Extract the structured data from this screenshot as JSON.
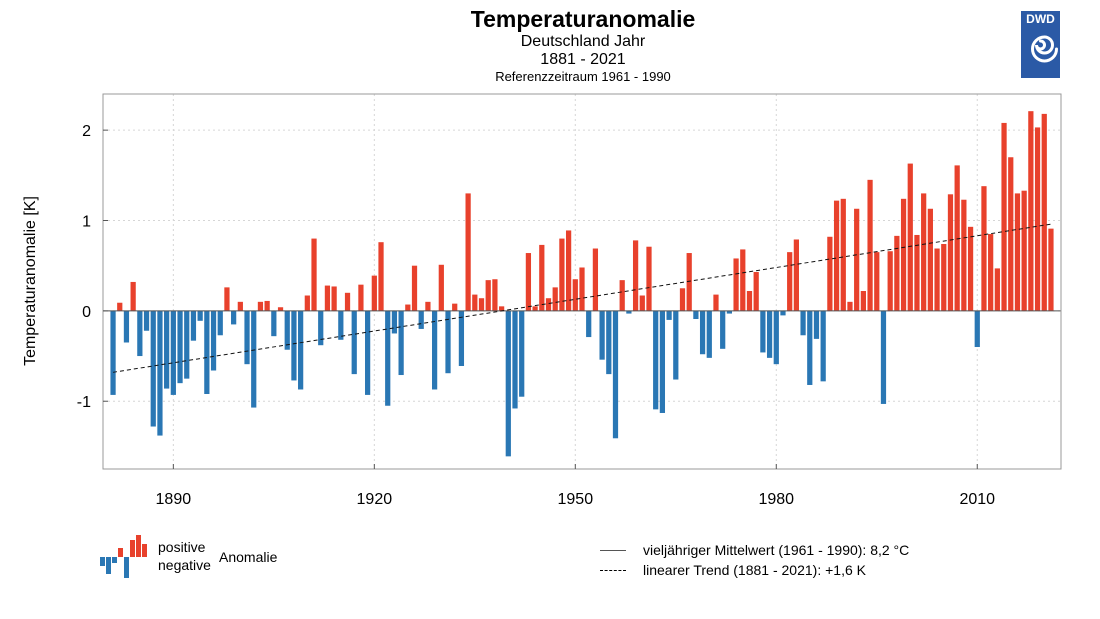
{
  "header": {
    "title": "Temperaturanomalie",
    "subtitle": "Deutschland Jahr",
    "period": "1881 - 2021",
    "reference": "Referenzzeitraum 1961 - 1990",
    "logo_text": "DWD",
    "logo_color": "#2b5aa6"
  },
  "legend": {
    "positive": "positive",
    "negative": "negative",
    "anomaly": "Anomalie",
    "mean_line": "vieljähriger Mittelwert (1961 - 1990): 8,2 °C",
    "trend_line": "linearer Trend (1881 - 2021): +1,6 K"
  },
  "chart_data": {
    "type": "bar",
    "title": "Temperaturanomalie",
    "ylabel": "Temperaturanomalie [K]",
    "xlabel": "",
    "xlim": [
      1879.5,
      2022.5
    ],
    "ylim": [
      -1.75,
      2.4
    ],
    "x_ticks": [
      1890,
      1920,
      1950,
      1980,
      2010
    ],
    "y_ticks": [
      -1,
      0,
      1,
      2
    ],
    "grid": true,
    "positive_color": "#e8412c",
    "negative_color": "#2a77b4",
    "start_year": 1881,
    "values": [
      -0.93,
      0.09,
      -0.35,
      0.32,
      -0.5,
      -0.22,
      -1.28,
      -1.38,
      -0.86,
      -0.93,
      -0.8,
      -0.75,
      -0.33,
      -0.11,
      -0.92,
      -0.66,
      -0.27,
      0.26,
      -0.15,
      0.1,
      -0.59,
      -1.07,
      0.1,
      0.11,
      -0.28,
      0.04,
      -0.43,
      -0.77,
      -0.87,
      0.17,
      0.8,
      -0.38,
      0.28,
      0.27,
      -0.32,
      0.2,
      -0.7,
      0.29,
      -0.93,
      0.39,
      0.76,
      -1.05,
      -0.25,
      -0.71,
      0.07,
      0.5,
      -0.2,
      0.1,
      -0.87,
      0.51,
      -0.69,
      0.08,
      -0.61,
      1.3,
      0.18,
      0.14,
      0.34,
      0.35,
      0.05,
      -1.61,
      -1.08,
      -0.95,
      0.64,
      0.05,
      0.73,
      0.14,
      0.26,
      0.8,
      0.89,
      0.35,
      0.48,
      -0.29,
      0.69,
      -0.54,
      -0.7,
      -1.41,
      0.34,
      -0.03,
      0.78,
      0.17,
      0.71,
      -1.09,
      -1.13,
      -0.1,
      -0.76,
      0.25,
      0.64,
      -0.09,
      -0.48,
      -0.52,
      0.18,
      -0.42,
      -0.03,
      0.58,
      0.68,
      0.22,
      0.43,
      -0.46,
      -0.52,
      -0.59,
      -0.05,
      0.65,
      0.79,
      -0.27,
      -0.82,
      -0.31,
      -0.78,
      0.82,
      1.22,
      1.24,
      0.1,
      1.13,
      0.22,
      1.45,
      0.65,
      -1.03,
      0.66,
      0.83,
      1.24,
      1.63,
      0.84,
      1.3,
      1.13,
      0.69,
      0.74,
      1.29,
      1.61,
      1.23,
      0.93,
      -0.4,
      1.38,
      0.85,
      0.47,
      2.08,
      1.7,
      1.3,
      1.33,
      2.21,
      2.03,
      2.18,
      0.91
    ],
    "mean_line_value": 0,
    "trend": {
      "start_year": 1881,
      "end_year": 2021,
      "start_value": -0.68,
      "end_value": 0.96
    }
  }
}
